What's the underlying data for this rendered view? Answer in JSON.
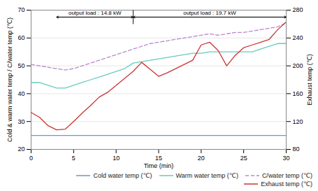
{
  "chart_data": {
    "type": "line",
    "xlabel": "Time (min)",
    "ylabel": "Cold & warm water temp / C/water temp (℃)",
    "y2label": "Exhaust temp (℃)",
    "x": [
      0,
      1,
      2,
      3,
      4,
      5,
      6,
      7,
      8,
      9,
      10,
      11,
      12,
      13,
      14,
      15,
      16,
      17,
      18,
      19,
      20,
      21,
      22,
      23,
      24,
      25,
      26,
      27,
      28,
      29,
      30
    ],
    "xlim": [
      0,
      30
    ],
    "xticks": [
      0,
      5,
      10,
      15,
      20,
      25,
      30
    ],
    "ylim": [
      20,
      70
    ],
    "yticks": [
      20,
      30,
      40,
      50,
      60,
      70
    ],
    "y2lim": [
      80,
      280
    ],
    "y2ticks": [
      80,
      120,
      160,
      200,
      240,
      280
    ],
    "grid": true,
    "legend": "lower right",
    "series": [
      {
        "name": "Cold water temp (℃)",
        "color": "#6699cc",
        "line_style": "solid",
        "axis": "y",
        "values": [
          25,
          25,
          25,
          25,
          25,
          25,
          25,
          25,
          25,
          25,
          25,
          25,
          25,
          25,
          25,
          25,
          25,
          25,
          25,
          25,
          25,
          25,
          25,
          25,
          25,
          25,
          25,
          25,
          25,
          25,
          25
        ]
      },
      {
        "name": "Warm water temp (℃)",
        "color": "#66ccbb",
        "line_style": "solid",
        "axis": "y",
        "values": [
          44,
          44,
          43,
          42,
          42,
          43,
          44,
          45,
          46,
          47,
          48,
          49,
          51,
          51.5,
          52,
          52.5,
          53,
          53.5,
          54,
          54.5,
          54.5,
          55,
          55,
          55,
          55,
          55,
          55,
          56,
          57,
          58,
          58
        ]
      },
      {
        "name": "C/water temp (℃)",
        "color": "#bb88cc",
        "line_style": "dashed",
        "axis": "y",
        "values": [
          50.5,
          50,
          49.5,
          49,
          48.5,
          49,
          50,
          51,
          52,
          53,
          54,
          55,
          56,
          57,
          58,
          58.5,
          59,
          59.5,
          60,
          60.5,
          61,
          61.5,
          61,
          61.5,
          62,
          62,
          62.5,
          63,
          63.5,
          64,
          65.5
        ]
      },
      {
        "name": "Exhaust temp (℃)",
        "color": "#cc3333",
        "line_style": "solid",
        "axis": "y2",
        "values": [
          133,
          126,
          114,
          108,
          109,
          120,
          132,
          143,
          155,
          162,
          172,
          182,
          192,
          205,
          195,
          185,
          190,
          196,
          202,
          208,
          230,
          234,
          222,
          200,
          215,
          226,
          230,
          234,
          238,
          252,
          263
        ]
      }
    ],
    "annotations": [
      {
        "type": "arrow",
        "text": "output load : 14.8 kW",
        "x": [
          3,
          12
        ],
        "y": 67.5
      },
      {
        "type": "arrow",
        "text": "output load : 19.7 kW",
        "x": [
          12,
          30
        ],
        "y": 67.5
      },
      {
        "type": "line",
        "x": [
          12,
          12
        ],
        "y": [
          65,
          70
        ]
      }
    ]
  }
}
